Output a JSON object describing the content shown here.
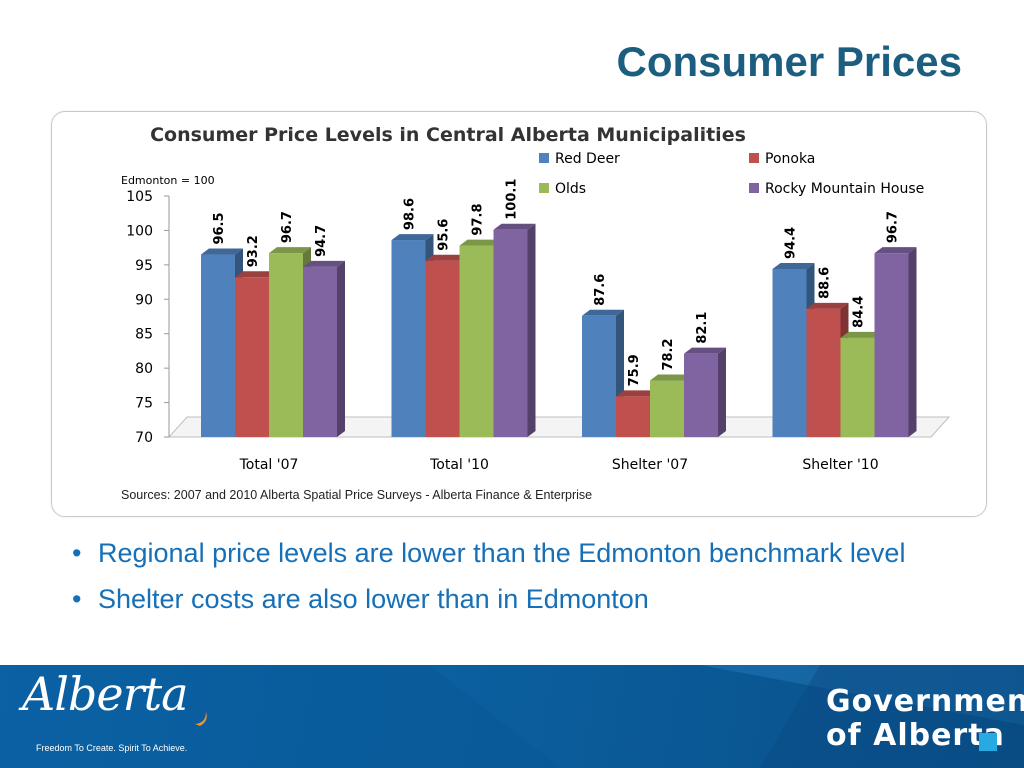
{
  "slide": {
    "title": "Consumer Prices",
    "bullets": [
      "Regional price levels are lower than the Edmonton benchmark level",
      "Shelter costs are also lower than in Edmonton"
    ],
    "bullet_symbol": "•"
  },
  "chart_data": {
    "type": "bar",
    "title": "Consumer Price Levels in Central Alberta Municipalities",
    "note": "Edmonton = 100",
    "categories": [
      "Total '07",
      "Total '10",
      "Shelter '07",
      "Shelter '10"
    ],
    "series": [
      {
        "name": "Red Deer",
        "color": "#4f81bd",
        "values": [
          96.5,
          98.6,
          87.6,
          94.4
        ]
      },
      {
        "name": "Ponoka",
        "color": "#c0504d",
        "values": [
          93.2,
          95.6,
          75.9,
          88.6
        ]
      },
      {
        "name": "Olds",
        "color": "#9bbb59",
        "values": [
          96.7,
          97.8,
          78.2,
          84.4
        ]
      },
      {
        "name": "Rocky Mountain House",
        "color": "#8064a2",
        "values": [
          94.7,
          100.1,
          82.1,
          96.7
        ]
      }
    ],
    "ylim": [
      70,
      105
    ],
    "yticks": [
      "105",
      "100",
      "95",
      "90",
      "85",
      "80",
      "75",
      "70"
    ],
    "data_labels": true,
    "legend_position": "top-right",
    "source": "Sources: 2007  and 2010 Alberta Spatial Price Surveys - Alberta Finance & Enterprise"
  },
  "footer": {
    "logo_text": "Alberta",
    "tagline": "Freedom To Create. Spirit To Achieve.",
    "government_line1": "Government",
    "government_line2": "of Alberta"
  },
  "colors": {
    "title": "#1b5e80",
    "bullet_text": "#1670b8",
    "footer_blue": "#0b5f9e",
    "accent_square": "#27a9e1",
    "logo_orange": "#f7941d"
  }
}
